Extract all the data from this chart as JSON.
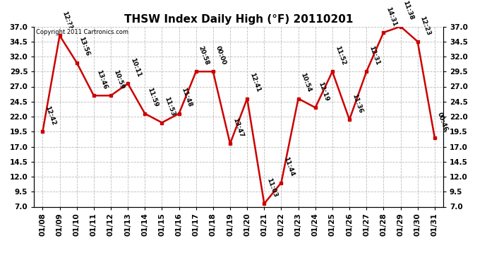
{
  "title": "THSW Index Daily High (°F) 20110201",
  "copyright": "Copyright 2011 Cartronics.com",
  "dates": [
    "01/08",
    "01/09",
    "01/10",
    "01/11",
    "01/12",
    "01/13",
    "01/14",
    "01/15",
    "01/16",
    "01/17",
    "01/18",
    "01/19",
    "01/20",
    "01/21",
    "01/22",
    "01/23",
    "01/24",
    "01/25",
    "01/26",
    "01/27",
    "01/28",
    "01/29",
    "01/30",
    "01/31"
  ],
  "values": [
    19.5,
    35.5,
    31.0,
    25.5,
    25.5,
    27.5,
    22.5,
    21.0,
    22.5,
    29.5,
    29.5,
    17.5,
    25.0,
    7.5,
    11.0,
    25.0,
    23.5,
    29.5,
    21.5,
    29.5,
    36.0,
    37.0,
    34.5,
    18.5
  ],
  "time_labels": [
    "12:42",
    "12:??",
    "13:56",
    "13:46",
    "10:59",
    "10:11",
    "11:59",
    "11:53",
    "11:48",
    "20:58",
    "00:00",
    "13:47",
    "12:41",
    "11:03",
    "11:44",
    "10:54",
    "12:19",
    "11:52",
    "11:36",
    "12:31",
    "14:31",
    "11:38",
    "12:23",
    "00:46"
  ],
  "ylim_low": 7.0,
  "ylim_high": 37.0,
  "yticks": [
    7.0,
    9.5,
    12.0,
    14.5,
    17.0,
    19.5,
    22.0,
    24.5,
    27.0,
    29.5,
    32.0,
    34.5,
    37.0
  ],
  "line_color": "#cc0000",
  "marker_color": "#cc0000",
  "bg_color": "#ffffff",
  "grid_color": "#bbbbbb",
  "title_fontsize": 11,
  "annot_fontsize": 6.5,
  "tick_fontsize": 7.5
}
